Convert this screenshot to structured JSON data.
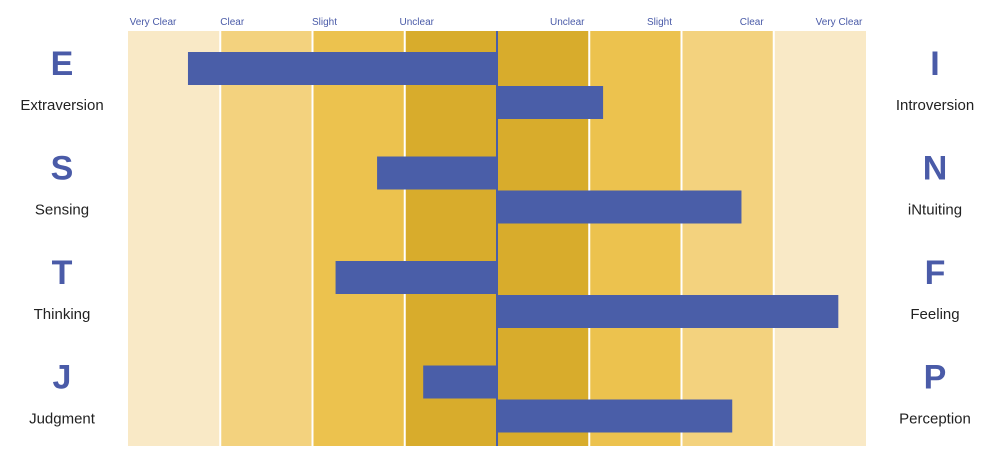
{
  "chart_data": {
    "type": "bar",
    "orientation": "diverging-horizontal",
    "scale": {
      "left_ticks": [
        "Very Clear",
        "Clear",
        "Slight",
        "Unclear"
      ],
      "right_ticks": [
        "Unclear",
        "Slight",
        "Clear",
        "Very Clear"
      ],
      "range": [
        -4,
        4
      ]
    },
    "band_colors": [
      "#f9e9c6",
      "#f3d27e",
      "#ecc24e",
      "#d8ac2c",
      "#d8ac2c",
      "#ecc24e",
      "#f3d27e",
      "#f9e9c6"
    ],
    "bar_color": "#4a5ea8",
    "dichotomies": [
      {
        "left": {
          "letter": "E",
          "label": "Extraversion",
          "value": 3.35
        },
        "right": {
          "letter": "I",
          "label": "Introversion",
          "value": 1.15
        }
      },
      {
        "left": {
          "letter": "S",
          "label": "Sensing",
          "value": 1.3
        },
        "right": {
          "letter": "N",
          "label": "iNtuiting",
          "value": 2.65
        }
      },
      {
        "left": {
          "letter": "T",
          "label": "Thinking",
          "value": 1.75
        },
        "right": {
          "letter": "F",
          "label": "Feeling",
          "value": 3.7
        }
      },
      {
        "left": {
          "letter": "J",
          "label": "Judgment",
          "value": 0.8
        },
        "right": {
          "letter": "P",
          "label": "Perception",
          "value": 2.55
        }
      }
    ]
  }
}
